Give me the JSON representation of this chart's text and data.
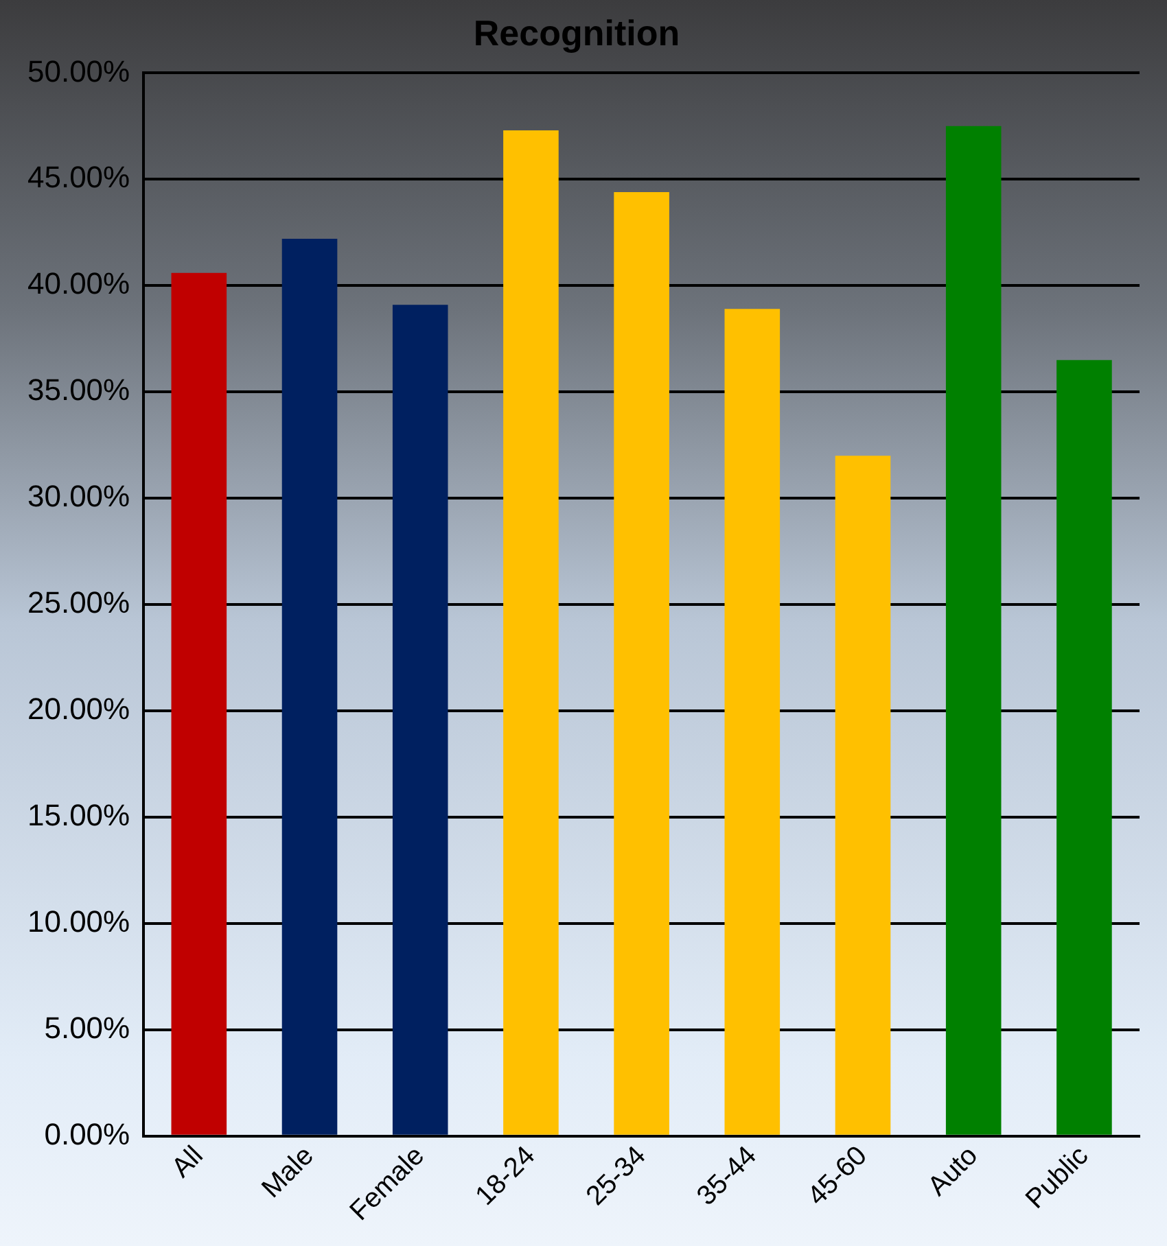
{
  "chart_data": {
    "type": "bar",
    "title": "Recognition",
    "categories": [
      "All",
      "Male",
      "Female",
      "18-24",
      "25-34",
      "35-44",
      "45-60",
      "Auto",
      "Public"
    ],
    "values": [
      40.6,
      42.2,
      39.1,
      47.3,
      44.4,
      38.9,
      32.0,
      47.5,
      36.5
    ],
    "colors": [
      "#c00000",
      "#002060",
      "#002060",
      "#ffc000",
      "#ffc000",
      "#ffc000",
      "#ffc000",
      "#008000",
      "#008000"
    ],
    "ylim": [
      0,
      50
    ],
    "yticks": [
      {
        "value": 0,
        "label": "0.00%"
      },
      {
        "value": 5,
        "label": "5.00%"
      },
      {
        "value": 10,
        "label": "10.00%"
      },
      {
        "value": 15,
        "label": "15.00%"
      },
      {
        "value": 20,
        "label": "20.00%"
      },
      {
        "value": 25,
        "label": "25.00%"
      },
      {
        "value": 30,
        "label": "30.00%"
      },
      {
        "value": 35,
        "label": "35.00%"
      },
      {
        "value": 40,
        "label": "40.00%"
      },
      {
        "value": 45,
        "label": "45.00%"
      },
      {
        "value": 50,
        "label": "50.00%"
      }
    ],
    "grid": "y",
    "legend": false
  }
}
